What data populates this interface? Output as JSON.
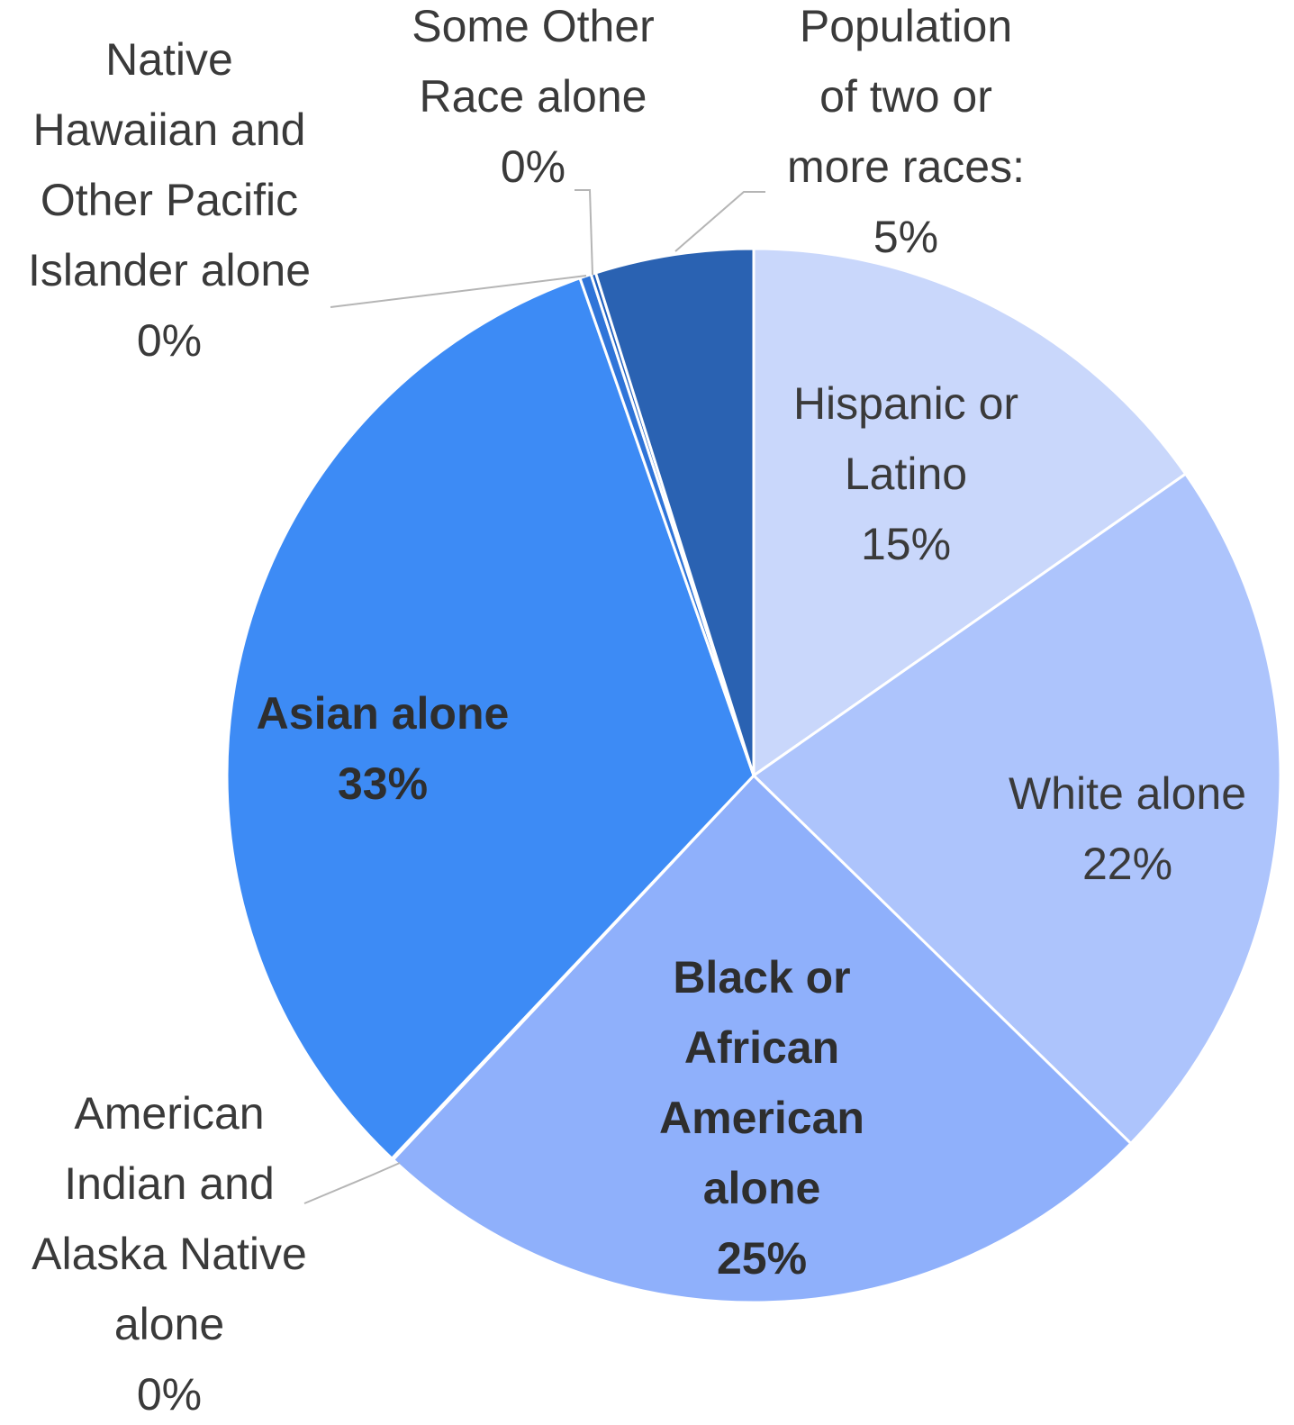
{
  "chart_data": {
    "type": "pie",
    "title": "",
    "start_angle_deg": 0,
    "direction": "clockwise",
    "slices": [
      {
        "label_lines": [
          "Hispanic or",
          "Latino",
          "15%"
        ],
        "label": "Hispanic or Latino",
        "value": 15.3,
        "display": "15%",
        "color": "#c9d7fb",
        "bold": false
      },
      {
        "label_lines": [
          "White alone",
          "22%"
        ],
        "label": "White alone",
        "value": 22.0,
        "display": "22%",
        "color": "#adc4fc",
        "bold": false
      },
      {
        "label_lines": [
          "Black or",
          "African",
          "American",
          "alone",
          "25%"
        ],
        "label": "Black or African American alone",
        "value": 24.7,
        "display": "25%",
        "color": "#8fb0fb",
        "bold": true
      },
      {
        "label_lines": [
          "American",
          "Indian and",
          "Alaska Native",
          "alone",
          "0%"
        ],
        "label": "American Indian and Alaska Native alone",
        "value": 0.05,
        "display": "0%",
        "color": "#6b9cf7",
        "bold": false
      },
      {
        "label_lines": [
          "Asian alone",
          "33%"
        ],
        "label": "Asian alone",
        "value": 32.6,
        "display": "33%",
        "color": "#3d8bf5",
        "bold": true
      },
      {
        "label_lines": [
          "Native",
          "Hawaiian and",
          "Other Pacific",
          "Islander alone",
          "0%"
        ],
        "label": "Native Hawaiian and Other Pacific Islander alone",
        "value": 0.35,
        "display": "0%",
        "color": "#2f74d8",
        "bold": false
      },
      {
        "label_lines": [
          "Some Other",
          "Race alone",
          "0%"
        ],
        "label": "Some Other Race alone",
        "value": 0.15,
        "display": "0%",
        "color": "#1f5fbf",
        "bold": false
      },
      {
        "label_lines": [
          "Population",
          "of two or",
          "more races:",
          "5%"
        ],
        "label": "Population of two or more races:",
        "value": 4.85,
        "display": "5%",
        "color": "#2a62b2",
        "bold": false
      }
    ]
  }
}
